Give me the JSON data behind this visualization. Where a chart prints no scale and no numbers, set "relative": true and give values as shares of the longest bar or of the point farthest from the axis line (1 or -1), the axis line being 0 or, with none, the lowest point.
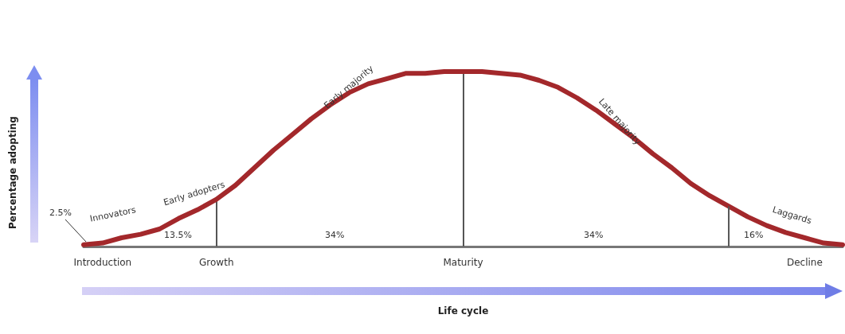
{
  "chart_data": {
    "type": "line",
    "relative": true,
    "xlabel": "Life cycle",
    "categories": [
      null,
      "Introduction",
      null,
      null,
      null,
      null,
      null,
      "Growth",
      null,
      null,
      null,
      null,
      null,
      null,
      null,
      null,
      null,
      null,
      null,
      null,
      "Maturity",
      null,
      null,
      null,
      null,
      null,
      null,
      null,
      null,
      null,
      null,
      null,
      null,
      null,
      null,
      null,
      null,
      null,
      "Decline",
      null,
      null
    ],
    "series": [
      {
        "color": "#a3282b",
        "values": [
          0.01,
          0.02,
          0.05,
          0.07,
          0.1,
          0.16,
          0.21,
          0.27,
          0.35,
          0.45,
          0.55,
          0.64,
          0.73,
          0.81,
          0.88,
          0.93,
          0.96,
          0.99,
          0.99,
          1,
          1,
          1,
          0.99,
          0.98,
          0.95,
          0.91,
          0.85,
          0.78,
          0.7,
          0.62,
          0.53,
          0.45,
          0.36,
          0.29,
          0.23,
          0.17,
          0.12,
          0.08,
          0.05,
          0.02,
          0.01
        ]
      }
    ],
    "ref_lines": [
      {
        "axis": "x",
        "value": "Growth",
        "color": "#555555"
      },
      {
        "axis": "x",
        "value": "Maturity",
        "color": "#555555"
      }
    ],
    "annotations": [
      "2.5%",
      "Innovators",
      "Early adopters",
      "13.5%",
      "Early majority",
      "34%",
      "Late majority",
      "34%",
      "Laggards",
      "16%",
      "Percentage adopting"
    ],
    "marker": "none",
    "line_style": "solid",
    "grid": false
  }
}
